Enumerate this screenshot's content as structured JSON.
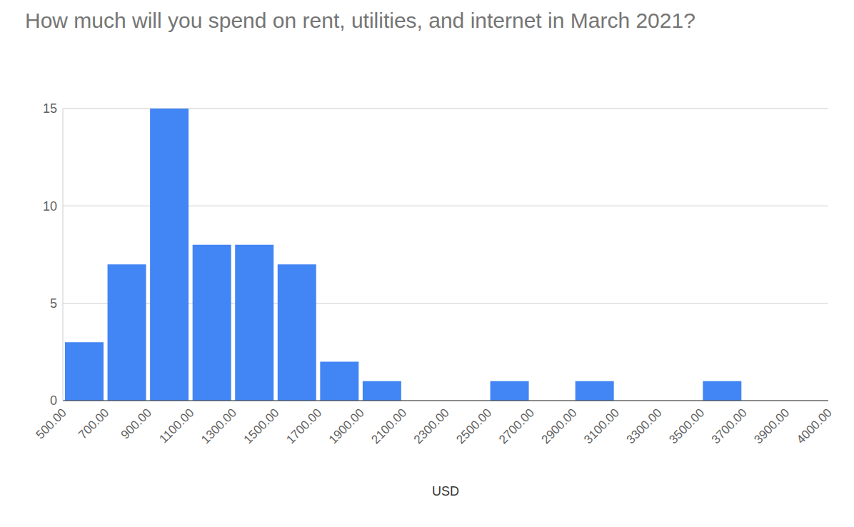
{
  "chart_data": {
    "type": "histogram",
    "title": "How much will you spend on rent, utilities, and internet in March 2021?",
    "x_label": "USD",
    "bins": [
      500,
      700,
      900,
      1100,
      1300,
      1500,
      1700,
      1900,
      2100,
      2300,
      2500,
      2700,
      2900,
      3100,
      3300,
      3500,
      3700,
      3900,
      4000
    ],
    "values": [
      3,
      7,
      15,
      8,
      8,
      7,
      2,
      1,
      0,
      0,
      1,
      0,
      1,
      0,
      0,
      1,
      0,
      0
    ],
    "color": "#4285f4",
    "xticks": [
      {
        "value": 500,
        "label": "500.00"
      },
      {
        "value": 700,
        "label": "700.00"
      },
      {
        "value": 900,
        "label": "900.00"
      },
      {
        "value": 1100,
        "label": "1100.00"
      },
      {
        "value": 1300,
        "label": "1300.00"
      },
      {
        "value": 1500,
        "label": "1500.00"
      },
      {
        "value": 1700,
        "label": "1700.00"
      },
      {
        "value": 1900,
        "label": "1900.00"
      },
      {
        "value": 2100,
        "label": "2100.00"
      },
      {
        "value": 2300,
        "label": "2300.00"
      },
      {
        "value": 2500,
        "label": "2500.00"
      },
      {
        "value": 2700,
        "label": "2700.00"
      },
      {
        "value": 2900,
        "label": "2900.00"
      },
      {
        "value": 3100,
        "label": "3100.00"
      },
      {
        "value": 3300,
        "label": "3300.00"
      },
      {
        "value": 3500,
        "label": "3500.00"
      },
      {
        "value": 3700,
        "label": "3700.00"
      },
      {
        "value": 3900,
        "label": "3900.00"
      },
      {
        "value": 4000,
        "label": "4000.00"
      }
    ],
    "ylim": [
      0,
      15
    ],
    "yticks": [
      0,
      5,
      10,
      15
    ],
    "grid": true
  }
}
